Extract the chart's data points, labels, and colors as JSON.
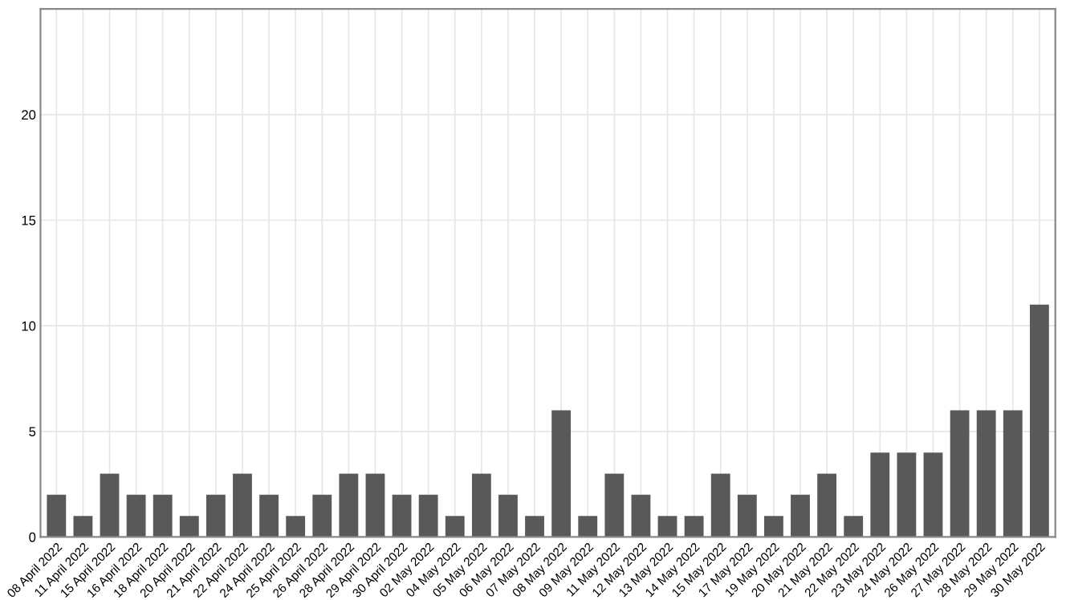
{
  "chart_data": {
    "type": "bar",
    "categories": [
      "08 April 2022",
      "11 April 2022",
      "15 April 2022",
      "16 April 2022",
      "18 April 2022",
      "20 April 2022",
      "21 April 2022",
      "22 April 2022",
      "24 April 2022",
      "25 April 2022",
      "26 April 2022",
      "28 April 2022",
      "29 April 2022",
      "30 April 2022",
      "02 May 2022",
      "04 May 2022",
      "05 May 2022",
      "06 May 2022",
      "07 May 2022",
      "08 May 2022",
      "09 May 2022",
      "11 May 2022",
      "12 May 2022",
      "13 May 2022",
      "14 May 2022",
      "15 May 2022",
      "17 May 2022",
      "19 May 2022",
      "20 May 2022",
      "21 May 2022",
      "22 May 2022",
      "23 May 2022",
      "24 May 2022",
      "26 May 2022",
      "27 May 2022",
      "28 May 2022",
      "29 May 2022",
      "30 May 2022"
    ],
    "values": [
      2,
      1,
      3,
      2,
      2,
      1,
      2,
      3,
      2,
      1,
      2,
      3,
      3,
      2,
      2,
      1,
      3,
      2,
      1,
      6,
      1,
      3,
      2,
      1,
      1,
      3,
      2,
      1,
      2,
      3,
      1,
      4,
      4,
      4,
      6,
      6,
      6,
      11
    ],
    "color": "#595959",
    "ylim": [
      0,
      25
    ],
    "yticks": [
      0,
      5,
      10,
      15,
      20
    ],
    "grid": true
  }
}
